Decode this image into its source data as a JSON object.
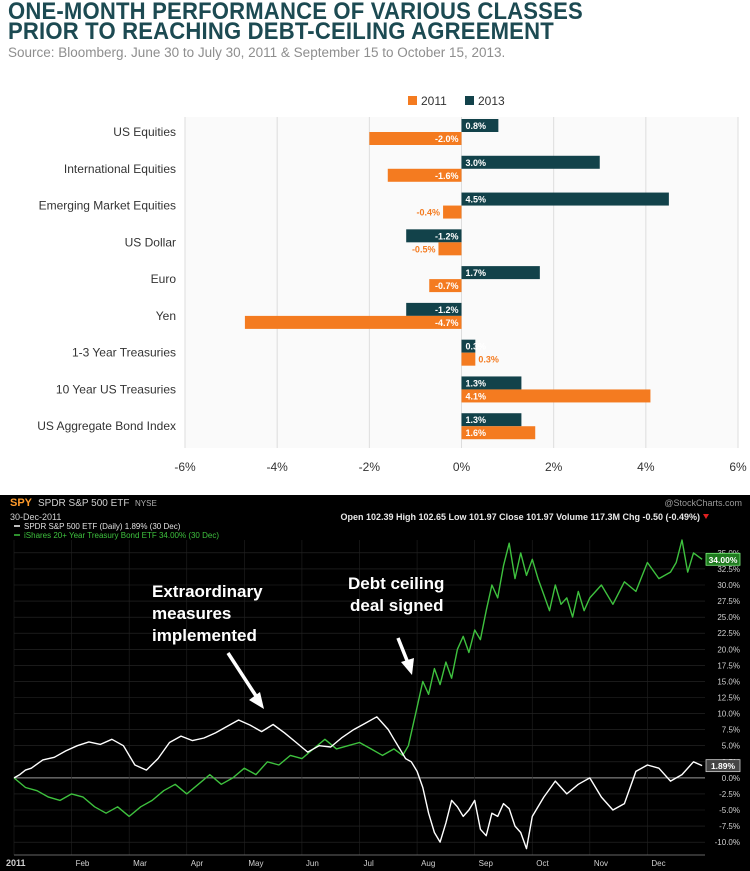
{
  "header": {
    "title_line1": "ONE-MONTH PERFORMANCE OF VARIOUS CLASSES",
    "title_line2": "PRIOR TO REACHING DEBT-CEILING AGREEMENT",
    "subtitle": "Source: Bloomberg. June 30 to July 30, 2011 & September 15 to October 15, 2013."
  },
  "colors": {
    "c2011": "#f47b20",
    "c2013": "#12424a",
    "grid": "#dddddd",
    "spy_line": "#ffffff",
    "tlt_line": "#3ec13e",
    "dark_bg": "#000000"
  },
  "chart_data": [
    {
      "type": "bar",
      "orientation": "horizontal",
      "title": "One-month performance of various classes prior to reaching debt-ceiling agreement",
      "categories": [
        "US Equities",
        "International Equities",
        "Emerging Market Equities",
        "US Dollar",
        "Euro",
        "Yen",
        "1-3 Year Treasuries",
        "10 Year US Treasuries",
        "US Aggregate Bond Index"
      ],
      "series": [
        {
          "name": "2011",
          "values": [
            -2.0,
            -1.6,
            -0.4,
            -0.5,
            -0.7,
            -4.7,
            0.3,
            4.1,
            1.6
          ],
          "labels": [
            "-2.0%",
            "-1.6%",
            "-0.4%",
            "-0.5%",
            "-0.7%",
            "-4.7%",
            "0.3%",
            "4.1%",
            "1.6%"
          ]
        },
        {
          "name": "2013",
          "values": [
            0.8,
            3.0,
            4.5,
            -1.2,
            1.7,
            -1.2,
            0.3,
            1.3,
            1.3
          ],
          "labels": [
            "0.8%",
            "3.0%",
            "4.5%",
            "-1.2%",
            "1.7%",
            "-1.2%",
            "0.3%",
            "1.3%",
            "1.3%"
          ]
        }
      ],
      "xlim": [
        -6,
        6
      ],
      "xticks": [
        -6,
        -4,
        -2,
        0,
        2,
        4,
        6
      ],
      "xtick_labels": [
        "-6%",
        "-4%",
        "-2%",
        "0%",
        "2%",
        "4%",
        "6%"
      ],
      "legend_position": "top-center",
      "grid": true
    },
    {
      "type": "line",
      "title": "SPY SPDR S&P 500 ETF NYSE",
      "symbol": "SPY",
      "name": "SPDR S&P 500 ETF",
      "exchange": "NYSE",
      "watermark": "@StockCharts.com",
      "date": "30-Dec-2011",
      "ohlc": "Open 102.39  High 102.65  Low 101.97  Close 101.97  Volume 117.3M  Chg -0.50 (-0.49%)",
      "x_labels": [
        "2011",
        "Feb",
        "Mar",
        "Apr",
        "May",
        "Jun",
        "Jul",
        "Aug",
        "Sep",
        "Oct",
        "Nov",
        "Dec"
      ],
      "ylim": [
        -12,
        37
      ],
      "yticks": [
        35,
        32.5,
        30,
        27.5,
        25,
        22.5,
        20,
        17.5,
        15,
        12.5,
        10,
        7.5,
        5,
        2.5,
        0,
        -2.5,
        -5,
        -7.5,
        -10
      ],
      "ytick_labels": [
        "35.0%",
        "32.5%",
        "30.0%",
        "27.5%",
        "25.0%",
        "22.5%",
        "20.0%",
        "17.5%",
        "15.0%",
        "12.5%",
        "10.0%",
        "7.5%",
        "5.0%",
        "2.5%",
        "0.0%",
        "-2.5%",
        "-5.0%",
        "-7.5%",
        "-10.0%"
      ],
      "series": [
        {
          "name": "SPDR S&P 500 ETF (Daily) 1.89% (30 Dec)",
          "last_label": "1.89%",
          "x": [
            0,
            0.1,
            0.2,
            0.3,
            0.5,
            0.7,
            0.9,
            1.1,
            1.3,
            1.5,
            1.7,
            1.9,
            2.1,
            2.3,
            2.5,
            2.7,
            2.9,
            3.1,
            3.3,
            3.5,
            3.7,
            3.9,
            4.1,
            4.3,
            4.5,
            4.7,
            4.9,
            5.1,
            5.3,
            5.5,
            5.7,
            5.9,
            6.1,
            6.3,
            6.5,
            6.6,
            6.7,
            6.8,
            6.9,
            7.0,
            7.1,
            7.2,
            7.3,
            7.4,
            7.5,
            7.6,
            7.7,
            7.8,
            7.9,
            8.0,
            8.1,
            8.2,
            8.3,
            8.4,
            8.5,
            8.6,
            8.7,
            8.8,
            8.9,
            9.0,
            9.2,
            9.4,
            9.6,
            9.8,
            10.0,
            10.2,
            10.4,
            10.6,
            10.8,
            11.0,
            11.2,
            11.4,
            11.6,
            11.8,
            11.95
          ],
          "values": [
            0,
            0.5,
            1.2,
            1.5,
            2.8,
            3.2,
            4.2,
            5.0,
            5.6,
            5.2,
            6.0,
            5.0,
            2.0,
            1.2,
            3.0,
            5.5,
            6.5,
            5.8,
            6.2,
            7.0,
            8.0,
            9.0,
            8.2,
            7.2,
            8.3,
            7.0,
            5.5,
            4.0,
            5.0,
            4.8,
            6.3,
            7.5,
            8.5,
            9.5,
            7.5,
            6.0,
            4.5,
            3.0,
            2.5,
            1.0,
            -1.5,
            -5.5,
            -8.5,
            -10.0,
            -7.0,
            -3.5,
            -4.5,
            -6.0,
            -5.0,
            -3.5,
            -8.0,
            -9.0,
            -5.5,
            -6.0,
            -4.0,
            -4.8,
            -7.5,
            -8.5,
            -11.0,
            -6.0,
            -3.0,
            -0.5,
            -2.5,
            -1.0,
            0.0,
            -3.0,
            -5.0,
            -4.0,
            1.0,
            2.0,
            1.5,
            -0.5,
            0.5,
            2.5,
            1.9
          ]
        },
        {
          "name": "iShares 20+ Year Treasury Bond ETF 34.00% (30 Dec)",
          "last_label": "34.00%",
          "x": [
            0,
            0.2,
            0.4,
            0.6,
            0.8,
            1.0,
            1.2,
            1.4,
            1.6,
            1.8,
            2.0,
            2.2,
            2.4,
            2.6,
            2.8,
            3.0,
            3.2,
            3.4,
            3.6,
            3.8,
            4.0,
            4.2,
            4.4,
            4.6,
            4.8,
            5.0,
            5.2,
            5.4,
            5.6,
            5.8,
            6.0,
            6.2,
            6.4,
            6.6,
            6.75,
            6.85,
            7.0,
            7.1,
            7.2,
            7.3,
            7.4,
            7.5,
            7.6,
            7.7,
            7.8,
            7.9,
            8.0,
            8.1,
            8.2,
            8.3,
            8.4,
            8.5,
            8.6,
            8.7,
            8.8,
            8.9,
            9.0,
            9.1,
            9.2,
            9.3,
            9.4,
            9.5,
            9.6,
            9.7,
            9.8,
            9.9,
            10.0,
            10.2,
            10.4,
            10.6,
            10.8,
            11.0,
            11.2,
            11.4,
            11.5,
            11.6,
            11.7,
            11.8,
            11.95
          ],
          "values": [
            0,
            -1.5,
            -2.0,
            -3.0,
            -3.5,
            -2.5,
            -3.0,
            -4.5,
            -5.5,
            -4.5,
            -6.0,
            -4.5,
            -3.5,
            -2.0,
            -1.0,
            -2.5,
            -1.0,
            0.5,
            -1.0,
            0.0,
            1.5,
            0.5,
            2.5,
            2.0,
            3.5,
            3.0,
            4.5,
            6.0,
            4.5,
            5.0,
            5.5,
            4.5,
            3.5,
            4.5,
            3.5,
            5.0,
            11.0,
            15.0,
            13.0,
            17.0,
            14.5,
            18.0,
            15.5,
            20.0,
            22.0,
            19.5,
            23.0,
            21.5,
            26.0,
            30.0,
            28.0,
            33.0,
            36.5,
            31.0,
            35.0,
            31.5,
            34.0,
            31.0,
            28.5,
            26.0,
            30.0,
            27.0,
            28.0,
            25.0,
            29.0,
            26.0,
            28.0,
            30.0,
            27.0,
            30.5,
            29.0,
            33.5,
            31.0,
            32.0,
            33.5,
            37.0,
            32.0,
            35.0,
            34.0
          ]
        }
      ],
      "annotations": [
        {
          "line1": "Extraordinary",
          "line2": "measures",
          "line3": "implemented"
        },
        {
          "line1": "Debt ceiling",
          "line2": "deal signed"
        }
      ]
    }
  ]
}
